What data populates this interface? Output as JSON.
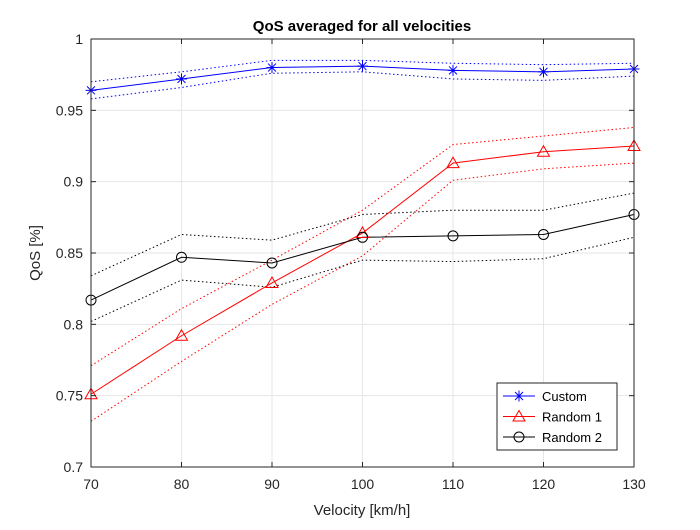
{
  "chart_data": {
    "type": "line",
    "title": "QoS averaged for all velocities",
    "xlabel": "Velocity [km/h]",
    "ylabel": "QoS [%]",
    "xlim": [
      70,
      130
    ],
    "ylim": [
      0.7,
      1
    ],
    "x": [
      70,
      80,
      90,
      100,
      110,
      120,
      130
    ],
    "xticks": [
      "70",
      "80",
      "90",
      "100",
      "110",
      "120",
      "130"
    ],
    "yticks": [
      {
        "v": 0.7,
        "label": "0.7"
      },
      {
        "v": 0.75,
        "label": "0.75"
      },
      {
        "v": 0.8,
        "label": "0.8"
      },
      {
        "v": 0.85,
        "label": "0.85"
      },
      {
        "v": 0.9,
        "label": "0.9"
      },
      {
        "v": 0.95,
        "label": "0.95"
      },
      {
        "v": 1.0,
        "label": "1"
      }
    ],
    "grid": true,
    "legend_position": "bottom-right",
    "series": [
      {
        "name": "Custom",
        "color": "#0000ff",
        "marker": "asterisk",
        "values": [
          0.964,
          0.972,
          0.98,
          0.981,
          0.978,
          0.977,
          0.979
        ],
        "upper": [
          0.97,
          0.977,
          0.985,
          0.985,
          0.983,
          0.982,
          0.983
        ],
        "lower": [
          0.958,
          0.966,
          0.976,
          0.977,
          0.972,
          0.971,
          0.974
        ]
      },
      {
        "name": "Random 1",
        "color": "#ff0000",
        "marker": "triangle",
        "values": [
          0.751,
          0.792,
          0.829,
          0.864,
          0.913,
          0.921,
          0.925
        ],
        "upper": [
          0.771,
          0.811,
          0.845,
          0.88,
          0.926,
          0.932,
          0.938
        ],
        "lower": [
          0.732,
          0.774,
          0.814,
          0.848,
          0.901,
          0.909,
          0.913
        ]
      },
      {
        "name": "Random 2",
        "color": "#000000",
        "marker": "circle",
        "values": [
          0.817,
          0.847,
          0.843,
          0.861,
          0.862,
          0.863,
          0.877
        ],
        "upper": [
          0.834,
          0.863,
          0.859,
          0.877,
          0.88,
          0.88,
          0.892
        ],
        "lower": [
          0.802,
          0.831,
          0.826,
          0.845,
          0.844,
          0.846,
          0.861
        ]
      }
    ]
  }
}
